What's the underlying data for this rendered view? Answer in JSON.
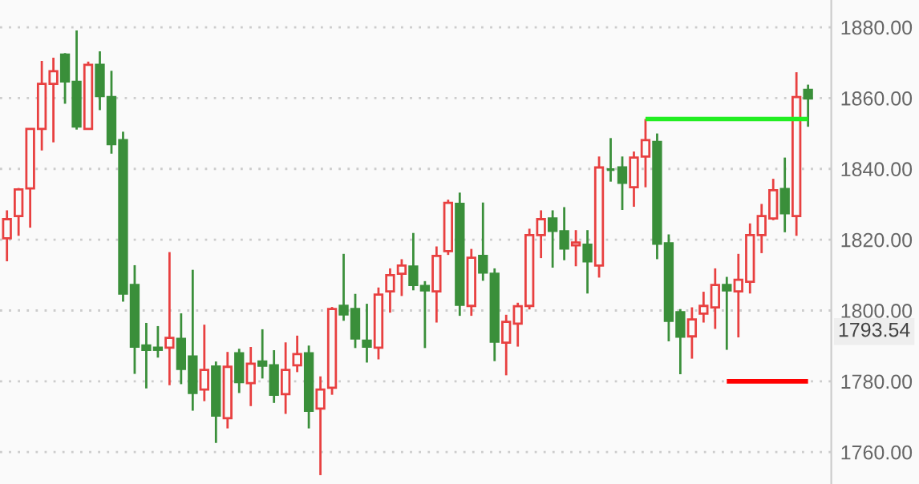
{
  "chart_data": {
    "type": "candlestick",
    "categories": [
      null,
      null,
      null,
      null,
      null,
      null,
      null,
      null,
      null,
      null,
      null,
      null,
      null,
      null,
      null,
      null,
      null,
      null,
      null,
      null,
      null,
      null,
      null,
      null,
      null,
      null,
      null,
      null,
      null,
      null,
      null,
      null,
      null,
      null,
      null,
      null,
      null,
      null,
      null,
      null,
      null,
      null,
      null,
      null,
      null,
      null,
      null,
      null,
      null,
      null,
      null,
      null,
      null,
      null,
      null,
      null,
      null,
      null,
      null,
      null,
      null,
      null,
      null,
      null,
      null,
      null,
      null,
      null,
      null,
      null
    ],
    "ohlc": [
      [
        1820.4,
        1828.3,
        1813.9,
        1825.8
      ],
      [
        1826.7,
        1834.6,
        1821.1,
        1834.2
      ],
      [
        1834.5,
        1851.3,
        1823.4,
        1851.3
      ],
      [
        1851.3,
        1870.5,
        1845.2,
        1864.0
      ],
      [
        1864.0,
        1871.4,
        1847.5,
        1867.6
      ],
      [
        1872.3,
        1872.7,
        1858.4,
        1864.7
      ],
      [
        1864.6,
        1879.1,
        1851.1,
        1852.0
      ],
      [
        1851.3,
        1870.3,
        1851.3,
        1869.4
      ],
      [
        1869.4,
        1873.2,
        1856.6,
        1860.6
      ],
      [
        1860.3,
        1867.7,
        1844.3,
        1847.0
      ],
      [
        1848.1,
        1850.5,
        1802.5,
        1804.8
      ],
      [
        1807.2,
        1812.8,
        1782.1,
        1789.8
      ],
      [
        1790.1,
        1796.5,
        1778.0,
        1788.9
      ],
      [
        1789.5,
        1795.6,
        1786.7,
        1788.9
      ],
      [
        1789.5,
        1816.5,
        1778.9,
        1792.3
      ],
      [
        1792.0,
        1799.2,
        1779.2,
        1783.5
      ],
      [
        1787.0,
        1811.5,
        1771.7,
        1776.7
      ],
      [
        1777.7,
        1796.0,
        1774.4,
        1783.2
      ],
      [
        1784.2,
        1785.6,
        1762.6,
        1770.3
      ],
      [
        1769.6,
        1788.3,
        1766.7,
        1784.1
      ],
      [
        1787.9,
        1789.2,
        1776.7,
        1779.8
      ],
      [
        1779.5,
        1789.7,
        1773.0,
        1785.0
      ],
      [
        1785.6,
        1794.7,
        1780.8,
        1784.4
      ],
      [
        1784.5,
        1788.8,
        1773.9,
        1776.2
      ],
      [
        1776.4,
        1791.0,
        1770.8,
        1783.2
      ],
      [
        1784.5,
        1792.9,
        1782.6,
        1787.7
      ],
      [
        1787.9,
        1790.1,
        1766.7,
        1771.7
      ],
      [
        1772.3,
        1781.4,
        1753.5,
        1777.7
      ],
      [
        1778.2,
        1801.0,
        1776.2,
        1800.4
      ],
      [
        1801.3,
        1816.0,
        1797.1,
        1798.9
      ],
      [
        1800.4,
        1804.7,
        1789.4,
        1792.1
      ],
      [
        1791.5,
        1801.9,
        1785.3,
        1789.8
      ],
      [
        1789.5,
        1806.5,
        1786.2,
        1804.5
      ],
      [
        1805.4,
        1811.9,
        1799.4,
        1810.0
      ],
      [
        1810.4,
        1814.5,
        1804.1,
        1812.7
      ],
      [
        1812.4,
        1821.9,
        1805.7,
        1807.2
      ],
      [
        1806.9,
        1808.3,
        1789.4,
        1805.7
      ],
      [
        1805.4,
        1818.1,
        1796.6,
        1815.4
      ],
      [
        1816.8,
        1831.3,
        1815.7,
        1830.4
      ],
      [
        1830.1,
        1833.3,
        1798.5,
        1801.6
      ],
      [
        1801.3,
        1817.4,
        1798.5,
        1814.9
      ],
      [
        1815.4,
        1830.5,
        1808.4,
        1810.7
      ],
      [
        1810.4,
        1811.9,
        1785.7,
        1791.2
      ],
      [
        1790.9,
        1798.8,
        1781.7,
        1796.8
      ],
      [
        1796.3,
        1802.2,
        1789.8,
        1801.2
      ],
      [
        1801.3,
        1823.1,
        1800.3,
        1821.3
      ],
      [
        1821.3,
        1828.3,
        1814.8,
        1825.8
      ],
      [
        1826.0,
        1828.3,
        1812.1,
        1822.5
      ],
      [
        1822.4,
        1829.2,
        1814.2,
        1817.5
      ],
      [
        1818.4,
        1822.7,
        1812.5,
        1819.2
      ],
      [
        1818.6,
        1822.7,
        1804.8,
        1813.9
      ],
      [
        1812.7,
        1843.5,
        1809.3,
        1840.4
      ],
      [
        1839.9,
        1848.7,
        1836.4,
        1839.8
      ],
      [
        1840.4,
        1843.5,
        1828.4,
        1836.1
      ],
      [
        1834.8,
        1844.9,
        1829.3,
        1843.2
      ],
      [
        1843.5,
        1854.1,
        1834.8,
        1848.1
      ],
      [
        1847.6,
        1850.0,
        1814.5,
        1818.9
      ],
      [
        1819.0,
        1821.5,
        1791.3,
        1797.1
      ],
      [
        1799.5,
        1800.4,
        1782.0,
        1792.6
      ],
      [
        1792.7,
        1800.9,
        1786.4,
        1797.5
      ],
      [
        1799.1,
        1805.3,
        1796.6,
        1801.3
      ],
      [
        1800.9,
        1811.9,
        1794.8,
        1807.2
      ],
      [
        1807.2,
        1809.5,
        1788.9,
        1805.7
      ],
      [
        1805.4,
        1816.0,
        1792.4,
        1808.7
      ],
      [
        1808.1,
        1824.6,
        1804.8,
        1821.3
      ],
      [
        1821.3,
        1830.1,
        1816.2,
        1826.7
      ],
      [
        1826.0,
        1837.2,
        1825.5,
        1834.0
      ],
      [
        1834.3,
        1843.2,
        1822.1,
        1827.5
      ],
      [
        1826.7,
        1867.3,
        1821.1,
        1860.3
      ],
      [
        1862.3,
        1863.8,
        1851.9,
        1859.9
      ]
    ],
    "colors": [
      "#e84040",
      "#e84040",
      "#e84040",
      "#e84040",
      "#e84040",
      "#3a8f3a",
      "#3a8f3a",
      "#e84040",
      "#3a8f3a",
      "#3a8f3a",
      "#3a8f3a",
      "#3a8f3a",
      "#3a8f3a",
      "#3a8f3a",
      "#e84040",
      "#3a8f3a",
      "#3a8f3a",
      "#e84040",
      "#3a8f3a",
      "#e84040",
      "#3a8f3a",
      "#e84040",
      "#3a8f3a",
      "#3a8f3a",
      "#e84040",
      "#e84040",
      "#3a8f3a",
      "#e84040",
      "#e84040",
      "#3a8f3a",
      "#3a8f3a",
      "#3a8f3a",
      "#e84040",
      "#e84040",
      "#e84040",
      "#3a8f3a",
      "#3a8f3a",
      "#e84040",
      "#e84040",
      "#3a8f3a",
      "#e84040",
      "#3a8f3a",
      "#3a8f3a",
      "#e84040",
      "#e84040",
      "#e84040",
      "#e84040",
      "#3a8f3a",
      "#3a8f3a",
      "#e84040",
      "#3a8f3a",
      "#e84040",
      "#3a8f3a",
      "#3a8f3a",
      "#e84040",
      "#e84040",
      "#3a8f3a",
      "#3a8f3a",
      "#3a8f3a",
      "#e84040",
      "#e84040",
      "#e84040",
      "#3a8f3a",
      "#e84040",
      "#e84040",
      "#e84040",
      "#e84040",
      "#3a8f3a",
      "#e84040",
      "#3a8f3a"
    ],
    "series": [
      {
        "type": "line",
        "color": "#22ee22",
        "values": [
          null,
          null,
          null,
          null,
          null,
          null,
          null,
          null,
          null,
          null,
          null,
          null,
          null,
          null,
          null,
          null,
          null,
          null,
          null,
          null,
          null,
          null,
          null,
          null,
          null,
          null,
          null,
          null,
          null,
          null,
          null,
          null,
          null,
          null,
          null,
          null,
          null,
          null,
          null,
          null,
          null,
          null,
          null,
          null,
          null,
          null,
          null,
          null,
          null,
          null,
          null,
          null,
          null,
          null,
          null,
          1854.1,
          1854.1,
          1854.1,
          1854.1,
          1854.1,
          1854.1,
          1854.1,
          1854.1,
          1854.1,
          1854.1,
          1854.1,
          1854.1,
          1854.1,
          1854.1,
          1854.1
        ]
      },
      {
        "type": "line",
        "color": "#ff0000",
        "values": [
          null,
          null,
          null,
          null,
          null,
          null,
          null,
          null,
          null,
          null,
          null,
          null,
          null,
          null,
          null,
          null,
          null,
          null,
          null,
          null,
          null,
          null,
          null,
          null,
          null,
          null,
          null,
          null,
          null,
          null,
          null,
          null,
          null,
          null,
          null,
          null,
          null,
          null,
          null,
          null,
          null,
          null,
          null,
          null,
          null,
          null,
          null,
          null,
          null,
          null,
          null,
          null,
          null,
          null,
          null,
          null,
          null,
          null,
          null,
          null,
          null,
          null,
          1780,
          1780,
          1780,
          1780,
          1780,
          1780,
          1780,
          1780
        ]
      }
    ],
    "ylim": [
      1751,
      1887.7
    ],
    "yticks": [
      {
        "value": 1760,
        "label": "1760.00"
      },
      {
        "value": 1780,
        "label": "1780.00"
      },
      {
        "value": 1800,
        "label": "1800.00"
      },
      {
        "value": 1820,
        "label": "1820.00"
      },
      {
        "value": 1840,
        "label": "1840.00"
      },
      {
        "value": 1860,
        "label": "1860.00"
      },
      {
        "value": 1880,
        "label": "1880.00"
      }
    ],
    "annotations": [
      "1793.54"
    ],
    "grid": "y",
    "tick_labels": "y"
  }
}
